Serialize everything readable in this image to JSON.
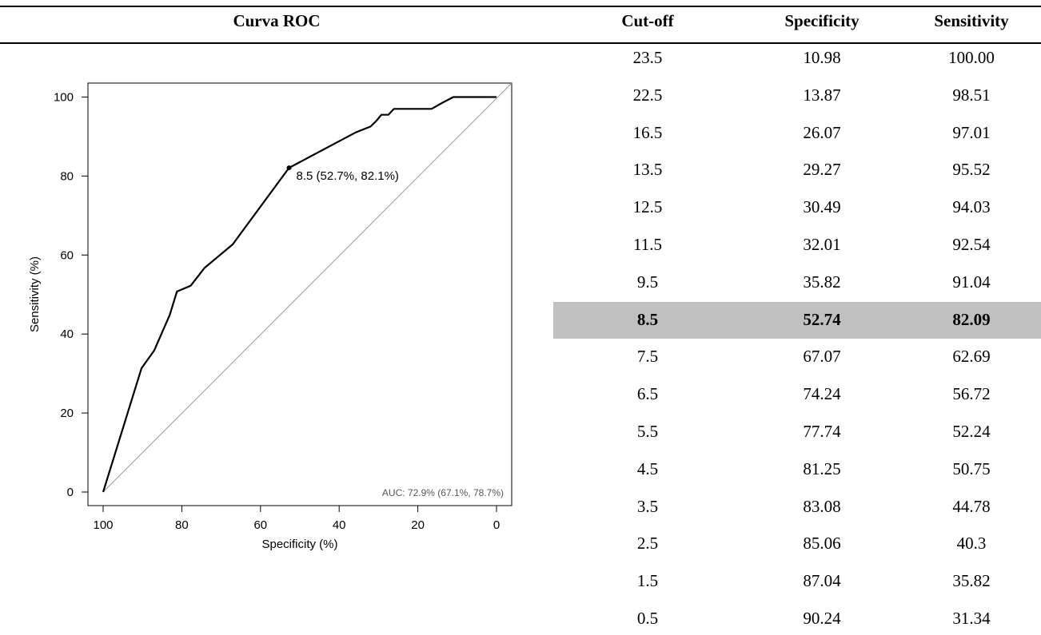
{
  "header": {
    "chart_title": "Curva ROC",
    "columns": [
      "Cut-off",
      "Specificity",
      "Sensitivity"
    ]
  },
  "table": {
    "highlight_index": 7,
    "highlight_color": "#c0c0c0",
    "rows": [
      {
        "cutoff": "23.5",
        "specificity": "10.98",
        "sensitivity": "100.00"
      },
      {
        "cutoff": "22.5",
        "specificity": "13.87",
        "sensitivity": "98.51"
      },
      {
        "cutoff": "16.5",
        "specificity": "26.07",
        "sensitivity": "97.01"
      },
      {
        "cutoff": "13.5",
        "specificity": "29.27",
        "sensitivity": "95.52"
      },
      {
        "cutoff": "12.5",
        "specificity": "30.49",
        "sensitivity": "94.03"
      },
      {
        "cutoff": "11.5",
        "specificity": "32.01",
        "sensitivity": "92.54"
      },
      {
        "cutoff": "9.5",
        "specificity": "35.82",
        "sensitivity": "91.04"
      },
      {
        "cutoff": "8.5",
        "specificity": "52.74",
        "sensitivity": "82.09"
      },
      {
        "cutoff": "7.5",
        "specificity": "67.07",
        "sensitivity": "62.69"
      },
      {
        "cutoff": "6.5",
        "specificity": "74.24",
        "sensitivity": "56.72"
      },
      {
        "cutoff": "5.5",
        "specificity": "77.74",
        "sensitivity": "52.24"
      },
      {
        "cutoff": "4.5",
        "specificity": "81.25",
        "sensitivity": "50.75"
      },
      {
        "cutoff": "3.5",
        "specificity": "83.08",
        "sensitivity": "44.78"
      },
      {
        "cutoff": "2.5",
        "specificity": "85.06",
        "sensitivity": "40.3"
      },
      {
        "cutoff": "1.5",
        "specificity": "87.04",
        "sensitivity": "35.82"
      },
      {
        "cutoff": "0.5",
        "specificity": "90.24",
        "sensitivity": "31.34"
      }
    ]
  },
  "chart_data": {
    "type": "line",
    "title": "",
    "xlabel": "Specificity (%)",
    "ylabel": "Sensitivity (%)",
    "xlim": [
      100,
      0
    ],
    "ylim": [
      0,
      100
    ],
    "x_reversed": true,
    "xticks": [
      100,
      80,
      60,
      40,
      20,
      0
    ],
    "yticks": [
      0,
      20,
      40,
      60,
      80,
      100
    ],
    "grid": false,
    "series": [
      {
        "color": "#000000",
        "x": [
          100,
          90.24,
          87.04,
          85.06,
          83.08,
          81.25,
          77.74,
          74.24,
          67.07,
          52.74,
          35.82,
          32.01,
          30.49,
          29.27,
          27.5,
          26.07,
          16.5,
          13.87,
          10.98,
          0
        ],
        "y": [
          0,
          31.34,
          35.82,
          40.3,
          44.78,
          50.75,
          52.24,
          56.72,
          62.69,
          82.09,
          91.04,
          92.54,
          94.03,
          95.52,
          95.52,
          97.01,
          97.01,
          98.51,
          100,
          100
        ]
      }
    ],
    "diagonal": {
      "x": [
        100,
        0
      ],
      "y": [
        0,
        100
      ],
      "color": "#999999"
    },
    "marked_point": {
      "x": 52.74,
      "y": 82.09,
      "label": "8.5 (52.7%, 82.1%)"
    },
    "auc_label": "AUC: 72.9% (67.1%, 78.7%)"
  }
}
